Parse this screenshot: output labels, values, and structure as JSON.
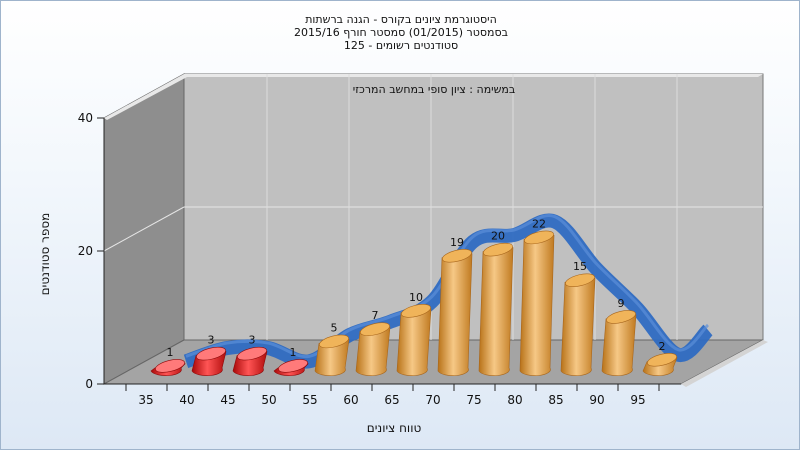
{
  "chart_data": {
    "type": "bar",
    "title_lines": [
      "היסטוגרמת ציונים בקורס - הגנה ברשתות",
      "בסמסטר  (01/2015)  סמסטר חורף 2015/16",
      "סטודנטים רשומים - 125"
    ],
    "subtitle": "במשימה : ציון סופי במחשב המרכזי",
    "xlabel": "טווח ציונים",
    "ylabel": "מספר סטודנטים",
    "categories": [
      "35",
      "40",
      "45",
      "50",
      "55",
      "60",
      "65",
      "70",
      "75",
      "80",
      "85",
      "90",
      "95"
    ],
    "values": [
      1,
      3,
      3,
      1,
      5,
      7,
      10,
      19,
      20,
      22,
      15,
      9,
      2
    ],
    "ylim": [
      0,
      40
    ],
    "y_ticks": [
      "0",
      "20",
      "40"
    ],
    "fail_threshold": "55",
    "colors": {
      "fail": "#e01818",
      "pass": "#e8a03a",
      "curve": "#2f6bc2"
    },
    "grid": true,
    "view": "3d"
  }
}
